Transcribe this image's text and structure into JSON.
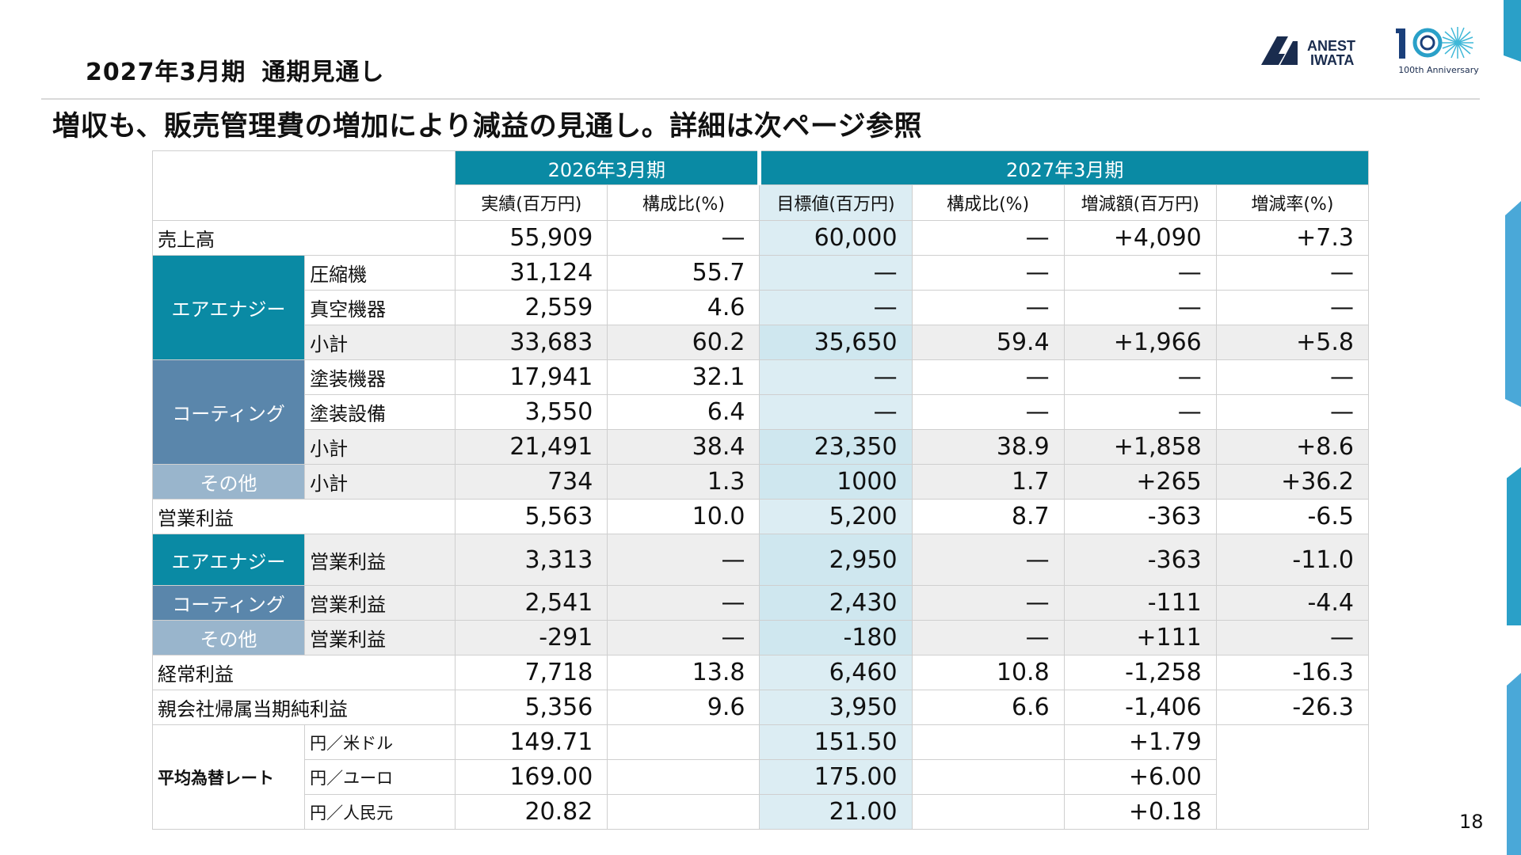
{
  "slide": {
    "title_period": "2027年3月期",
    "title_subject": "通期見通し",
    "headline": "増収も、販売管理費の増加により減益の見通し。詳細は次ページ参照",
    "page_number": "18",
    "logo_line1": "ANEST",
    "logo_line2": "IWATA",
    "anniversary_text": "100th Anniversary"
  },
  "table": {
    "period_2026": "2026年3月期",
    "period_2027": "2027年3月期",
    "col_actual": "実績(百万円)",
    "col_ratio": "構成比(%)",
    "col_target": "目標値(百万円)",
    "col_ratio2": "構成比(%)",
    "col_change": "増減額(百万円)",
    "col_rate": "増減率(%)",
    "group_air": "エアエナジー",
    "group_coat": "コーティング",
    "group_other": "その他",
    "fx_label": "平均為替レート",
    "rows": {
      "sales": {
        "label": "売上高",
        "a": "55,909",
        "r": "—",
        "t": "60,000",
        "r2": "—",
        "c": "+4,090",
        "p": "+7.3"
      },
      "compressor": {
        "label": "圧縮機",
        "a": "31,124",
        "r": "55.7",
        "t": "—",
        "r2": "—",
        "c": "—",
        "p": "—"
      },
      "vacuum": {
        "label": "真空機器",
        "a": "2,559",
        "r": "4.6",
        "t": "—",
        "r2": "—",
        "c": "—",
        "p": "—"
      },
      "air_sub": {
        "label": "小計",
        "a": "33,683",
        "r": "60.2",
        "t": "35,650",
        "r2": "59.4",
        "c": "+1,966",
        "p": "+5.8"
      },
      "coating_eq": {
        "label": "塗装機器",
        "a": "17,941",
        "r": "32.1",
        "t": "—",
        "r2": "—",
        "c": "—",
        "p": "—"
      },
      "coating_fa": {
        "label": "塗装設備",
        "a": "3,550",
        "r": "6.4",
        "t": "—",
        "r2": "—",
        "c": "—",
        "p": "—"
      },
      "coat_sub": {
        "label": "小計",
        "a": "21,491",
        "r": "38.4",
        "t": "23,350",
        "r2": "38.9",
        "c": "+1,858",
        "p": "+8.6"
      },
      "other_sub": {
        "label": "小計",
        "a": "734",
        "r": "1.3",
        "t": "1000",
        "r2": "1.7",
        "c": "+265",
        "p": "+36.2"
      },
      "op": {
        "label": "営業利益",
        "a": "5,563",
        "r": "10.0",
        "t": "5,200",
        "r2": "8.7",
        "c": "-363",
        "p": "-6.5"
      },
      "op_air": {
        "label": "営業利益",
        "a": "3,313",
        "r": "—",
        "t": "2,950",
        "r2": "—",
        "c": "-363",
        "p": "-11.0"
      },
      "op_coat": {
        "label": "営業利益",
        "a": "2,541",
        "r": "—",
        "t": "2,430",
        "r2": "—",
        "c": "-111",
        "p": "-4.4"
      },
      "op_other": {
        "label": "営業利益",
        "a": "-291",
        "r": "—",
        "t": "-180",
        "r2": "—",
        "c": "+111",
        "p": "—"
      },
      "ordinary": {
        "label": "経常利益",
        "a": "7,718",
        "r": "13.8",
        "t": "6,460",
        "r2": "10.8",
        "c": "-1,258",
        "p": "-16.3"
      },
      "net": {
        "label": "親会社帰属当期純利益",
        "a": "5,356",
        "r": "9.6",
        "t": "3,950",
        "r2": "6.6",
        "c": "-1,406",
        "p": "-26.3"
      },
      "usd": {
        "label": "円／米ドル",
        "a": "149.71",
        "t": "151.50",
        "c": "+1.79"
      },
      "eur": {
        "label": "円／ユーロ",
        "a": "169.00",
        "t": "175.00",
        "c": "+6.00"
      },
      "cny": {
        "label": "円／人民元",
        "a": "20.82",
        "t": "21.00",
        "c": "+0.18"
      }
    }
  },
  "colors": {
    "teal": "#0a8aa4",
    "steel": "#5a86ab",
    "light_steel": "#99b5cc",
    "target_tint": "#dcedf3"
  },
  "icons": [
    "anest-iwata-logo",
    "100th-anniversary-emblem"
  ]
}
